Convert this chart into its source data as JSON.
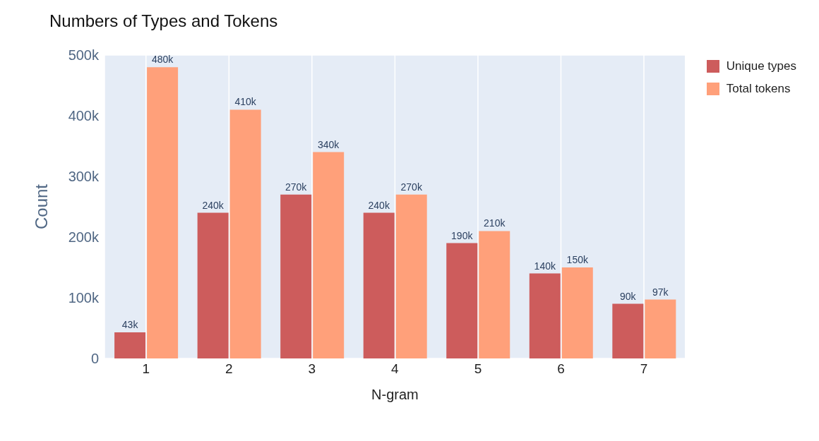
{
  "chart_data": {
    "type": "bar",
    "title": "Numbers of Types and Tokens",
    "xlabel": "N-gram",
    "ylabel": "Count",
    "categories": [
      "1",
      "2",
      "3",
      "4",
      "5",
      "6",
      "7"
    ],
    "series": [
      {
        "name": "Unique types",
        "color": "#cd5c5c",
        "values": [
          43000,
          240000,
          270000,
          240000,
          190000,
          140000,
          90000
        ],
        "value_labels": [
          "43k",
          "240k",
          "270k",
          "240k",
          "190k",
          "140k",
          "90k"
        ]
      },
      {
        "name": "Total tokens",
        "color": "#ffa07a",
        "values": [
          480000,
          410000,
          340000,
          270000,
          210000,
          150000,
          97000
        ],
        "value_labels": [
          "480k",
          "410k",
          "340k",
          "270k",
          "210k",
          "150k",
          "97k"
        ]
      }
    ],
    "ylim": [
      0,
      500000
    ],
    "yticks": [
      0,
      {
        "value": 100000,
        "label": "100k"
      },
      {
        "value": 200000,
        "label": "200k"
      },
      {
        "value": 300000,
        "label": "300k"
      },
      {
        "value": 400000,
        "label": "400k"
      },
      {
        "value": 500000,
        "label": "500k"
      }
    ],
    "grid": true,
    "legend": "top right"
  }
}
